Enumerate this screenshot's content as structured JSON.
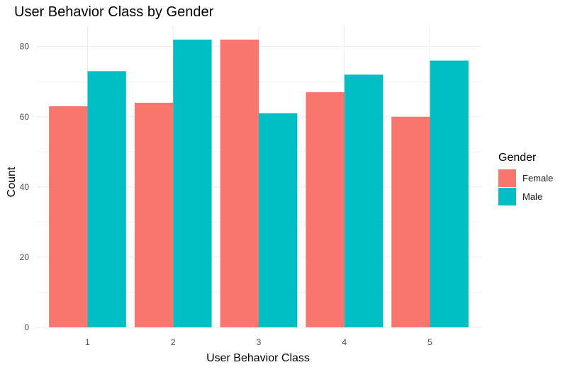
{
  "chart_data": {
    "type": "bar",
    "title": "User Behavior Class by Gender",
    "xlabel": "User Behavior Class",
    "ylabel": "Count",
    "categories": [
      "1",
      "2",
      "3",
      "4",
      "5"
    ],
    "series": [
      {
        "name": "Female",
        "color": "#F8766D",
        "values": [
          63,
          64,
          82,
          67,
          60
        ]
      },
      {
        "name": "Male",
        "color": "#00BFC4",
        "values": [
          73,
          82,
          61,
          72,
          76
        ]
      }
    ],
    "ylim": [
      0,
      86
    ],
    "yticks": [
      0,
      20,
      40,
      60,
      80
    ],
    "legend_title": "Gender",
    "legend_position": "right",
    "grid": true
  }
}
